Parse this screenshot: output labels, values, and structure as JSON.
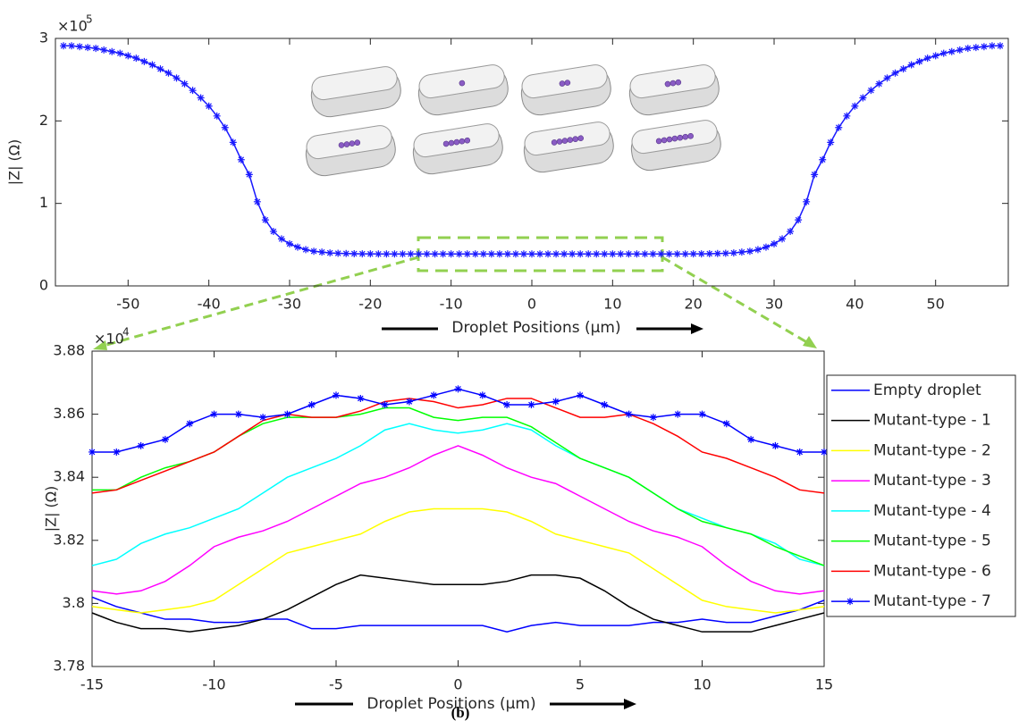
{
  "chart_data": [
    {
      "type": "line",
      "y_multiplier": "×10",
      "y_multiplier_exp": "5",
      "y_label": "|Z| (Ω)",
      "x_label": "Droplet Positions (µm)",
      "xlim": [
        -59,
        59
      ],
      "xticks": [
        -50,
        -40,
        -30,
        -20,
        -10,
        0,
        10,
        20,
        30,
        40,
        50
      ],
      "ylim": [
        0,
        3
      ],
      "yticks": [
        0,
        1,
        2,
        3
      ],
      "x": [
        -58,
        -57,
        -56,
        -55,
        -54,
        -53,
        -52,
        -51,
        -50,
        -49,
        -48,
        -47,
        -46,
        -45,
        -44,
        -43,
        -42,
        -41,
        -40,
        -39,
        -38,
        -37,
        -36,
        -35,
        -34,
        -33,
        -32,
        -31,
        -30,
        -29,
        -28,
        -27,
        -26,
        -25,
        -24,
        -23,
        -22,
        -21,
        -20,
        -19,
        -18,
        -17,
        -16,
        -15,
        -14,
        -13,
        -12,
        -11,
        -10,
        -9,
        -8,
        -7,
        -6,
        -5,
        -4,
        -3,
        -2,
        -1,
        0,
        1,
        2,
        3,
        4,
        5,
        6,
        7,
        8,
        9,
        10,
        11,
        12,
        13,
        14,
        15,
        16,
        17,
        18,
        19,
        20,
        21,
        22,
        23,
        24,
        25,
        26,
        27,
        28,
        29,
        30,
        31,
        32,
        33,
        34,
        35,
        36,
        37,
        38,
        39,
        40,
        41,
        42,
        43,
        44,
        45,
        46,
        47,
        48,
        49,
        50,
        51,
        52,
        53,
        54,
        55,
        56,
        57,
        58
      ],
      "series": [
        {
          "color": "#1a1aff",
          "marker": "star",
          "values": [
            2.91,
            2.91,
            2.9,
            2.89,
            2.88,
            2.86,
            2.84,
            2.82,
            2.79,
            2.76,
            2.72,
            2.68,
            2.63,
            2.58,
            2.52,
            2.45,
            2.37,
            2.28,
            2.18,
            2.06,
            1.92,
            1.74,
            1.53,
            1.35,
            1.02,
            0.8,
            0.66,
            0.57,
            0.51,
            0.47,
            0.44,
            0.42,
            0.41,
            0.4,
            0.395,
            0.392,
            0.39,
            0.389,
            0.388,
            0.387,
            0.387,
            0.387,
            0.387,
            0.387,
            0.387,
            0.387,
            0.387,
            0.387,
            0.387,
            0.387,
            0.387,
            0.387,
            0.387,
            0.387,
            0.387,
            0.387,
            0.387,
            0.387,
            0.387,
            0.387,
            0.387,
            0.387,
            0.387,
            0.387,
            0.387,
            0.387,
            0.387,
            0.387,
            0.387,
            0.387,
            0.387,
            0.387,
            0.387,
            0.387,
            0.387,
            0.387,
            0.387,
            0.387,
            0.388,
            0.389,
            0.39,
            0.392,
            0.395,
            0.4,
            0.41,
            0.42,
            0.44,
            0.47,
            0.51,
            0.57,
            0.66,
            0.8,
            1.02,
            1.35,
            1.53,
            1.74,
            1.92,
            2.06,
            2.18,
            2.28,
            2.37,
            2.45,
            2.52,
            2.58,
            2.63,
            2.68,
            2.72,
            2.76,
            2.79,
            2.82,
            2.84,
            2.86,
            2.88,
            2.89,
            2.9,
            2.91,
            2.91
          ]
        }
      ]
    },
    {
      "type": "line",
      "y_multiplier": "×10",
      "y_multiplier_exp": "4",
      "y_label": "|Z| (Ω)",
      "x_label": "Droplet Positions (µm)",
      "xlim": [
        -15,
        15
      ],
      "xticks": [
        -15,
        -10,
        -5,
        0,
        5,
        10,
        15
      ],
      "ylim": [
        3.78,
        3.88
      ],
      "yticks": [
        3.78,
        3.8,
        3.82,
        3.84,
        3.86,
        3.88
      ],
      "legend": "outside-right",
      "x": [
        -15,
        -14,
        -13,
        -12,
        -11,
        -10,
        -9,
        -8,
        -7,
        -6,
        -5,
        -4,
        -3,
        -2,
        -1,
        0,
        1,
        2,
        3,
        4,
        5,
        6,
        7,
        8,
        9,
        10,
        11,
        12,
        13,
        14,
        15
      ],
      "series": [
        {
          "name": "Empty droplet",
          "color": "#0000ff",
          "values": [
            3.802,
            3.799,
            3.797,
            3.795,
            3.795,
            3.794,
            3.794,
            3.795,
            3.795,
            3.792,
            3.792,
            3.793,
            3.793,
            3.793,
            3.793,
            3.793,
            3.793,
            3.791,
            3.793,
            3.794,
            3.793,
            3.793,
            3.793,
            3.794,
            3.794,
            3.795,
            3.794,
            3.794,
            3.796,
            3.798,
            3.801
          ]
        },
        {
          "name": "Mutant-type - 1",
          "color": "#000000",
          "values": [
            3.797,
            3.794,
            3.792,
            3.792,
            3.791,
            3.792,
            3.793,
            3.795,
            3.798,
            3.802,
            3.806,
            3.809,
            3.808,
            3.807,
            3.806,
            3.806,
            3.806,
            3.807,
            3.809,
            3.809,
            3.808,
            3.804,
            3.799,
            3.795,
            3.793,
            3.791,
            3.791,
            3.791,
            3.793,
            3.795,
            3.797
          ]
        },
        {
          "name": "Mutant-type - 2",
          "color": "#ffff00",
          "values": [
            3.799,
            3.798,
            3.797,
            3.798,
            3.799,
            3.801,
            3.806,
            3.811,
            3.816,
            3.818,
            3.82,
            3.822,
            3.826,
            3.829,
            3.83,
            3.83,
            3.83,
            3.829,
            3.826,
            3.822,
            3.82,
            3.818,
            3.816,
            3.811,
            3.806,
            3.801,
            3.799,
            3.798,
            3.797,
            3.798,
            3.799
          ]
        },
        {
          "name": "Mutant-type - 3",
          "color": "#ff00ff",
          "values": [
            3.804,
            3.803,
            3.804,
            3.807,
            3.812,
            3.818,
            3.821,
            3.823,
            3.826,
            3.83,
            3.834,
            3.838,
            3.84,
            3.843,
            3.847,
            3.85,
            3.847,
            3.843,
            3.84,
            3.838,
            3.834,
            3.83,
            3.826,
            3.823,
            3.821,
            3.818,
            3.812,
            3.807,
            3.804,
            3.803,
            3.804
          ]
        },
        {
          "name": "Mutant-type - 4",
          "color": "#00ffff",
          "values": [
            3.812,
            3.814,
            3.819,
            3.822,
            3.824,
            3.827,
            3.83,
            3.835,
            3.84,
            3.843,
            3.846,
            3.85,
            3.855,
            3.857,
            3.855,
            3.854,
            3.855,
            3.857,
            3.855,
            3.85,
            3.846,
            3.843,
            3.84,
            3.835,
            3.83,
            3.827,
            3.824,
            3.822,
            3.819,
            3.814,
            3.812
          ]
        },
        {
          "name": "Mutant-type - 5",
          "color": "#00ff00",
          "values": [
            3.836,
            3.836,
            3.84,
            3.843,
            3.845,
            3.848,
            3.853,
            3.857,
            3.859,
            3.859,
            3.859,
            3.86,
            3.862,
            3.862,
            3.859,
            3.858,
            3.859,
            3.859,
            3.856,
            3.851,
            3.846,
            3.843,
            3.84,
            3.835,
            3.83,
            3.826,
            3.824,
            3.822,
            3.818,
            3.815,
            3.812
          ]
        },
        {
          "name": "Mutant-type - 6",
          "color": "#ff0000",
          "values": [
            3.835,
            3.836,
            3.839,
            3.842,
            3.845,
            3.848,
            3.853,
            3.858,
            3.86,
            3.859,
            3.859,
            3.861,
            3.864,
            3.865,
            3.864,
            3.862,
            3.863,
            3.865,
            3.865,
            3.862,
            3.859,
            3.859,
            3.86,
            3.857,
            3.853,
            3.848,
            3.846,
            3.843,
            3.84,
            3.836,
            3.835
          ]
        },
        {
          "name": "Mutant-type - 7",
          "color": "#0000ff",
          "marker": "star",
          "values": [
            3.848,
            3.848,
            3.85,
            3.852,
            3.857,
            3.86,
            3.86,
            3.859,
            3.86,
            3.863,
            3.866,
            3.865,
            3.863,
            3.864,
            3.866,
            3.868,
            3.866,
            3.863,
            3.863,
            3.864,
            3.866,
            3.863,
            3.86,
            3.859,
            3.86,
            3.86,
            3.857,
            3.852,
            3.85,
            3.848,
            3.848
          ]
        }
      ]
    }
  ],
  "figure_label": "(b)"
}
